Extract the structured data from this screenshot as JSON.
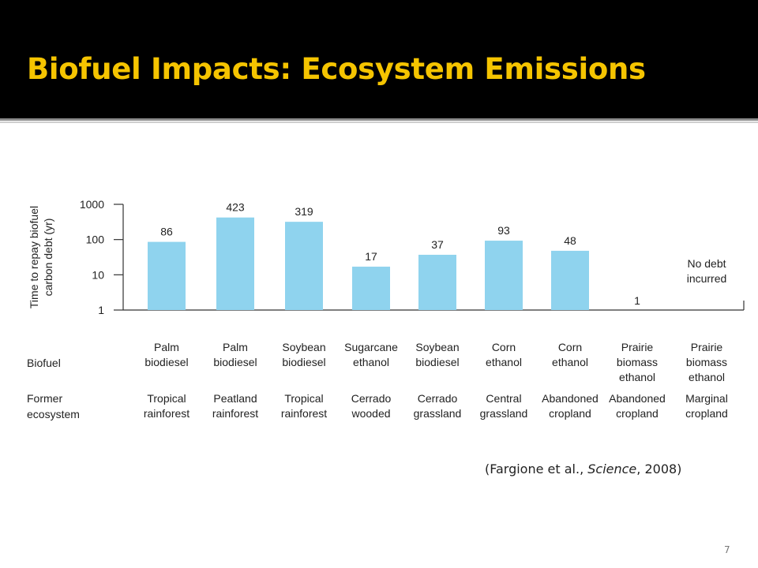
{
  "slide": {
    "title": "Biofuel Impacts: Ecosystem Emissions",
    "citation_open": "(Fargione et al., ",
    "citation_journal": "Science",
    "citation_close": ", 2008)",
    "page_number": "7",
    "colors": {
      "header_bg": "#000000",
      "title": "#f5c400",
      "bar": "#8fd3ee"
    }
  },
  "chart_data": {
    "type": "bar",
    "ylabel": "Time to repay biofuel carbon debt (yr)",
    "yscale": "log",
    "ylim": [
      1,
      1000
    ],
    "yticks": [
      "1",
      "10",
      "100",
      "1000"
    ],
    "values": [
      86,
      423,
      319,
      17,
      37,
      93,
      48,
      1,
      null
    ],
    "value_labels": [
      "86",
      "423",
      "319",
      "17",
      "37",
      "93",
      "48",
      "1",
      "No debt incurred"
    ],
    "row_headers": {
      "biofuel": "Biofuel",
      "former_ecosystem": "Former ecosystem"
    },
    "biofuels": [
      "Palm biodiesel",
      "Palm biodiesel",
      "Soybean biodiesel",
      "Sugarcane ethanol",
      "Soybean biodiesel",
      "Corn ethanol",
      "Corn ethanol",
      "Prairie biomass ethanol",
      "Prairie biomass ethanol"
    ],
    "former_ecosystems": [
      "Tropical rainforest",
      "Peatland rainforest",
      "Tropical rainforest",
      "Cerrado wooded",
      "Cerrado grassland",
      "Central grassland",
      "Abandoned cropland",
      "Abandoned cropland",
      "Marginal cropland"
    ]
  }
}
